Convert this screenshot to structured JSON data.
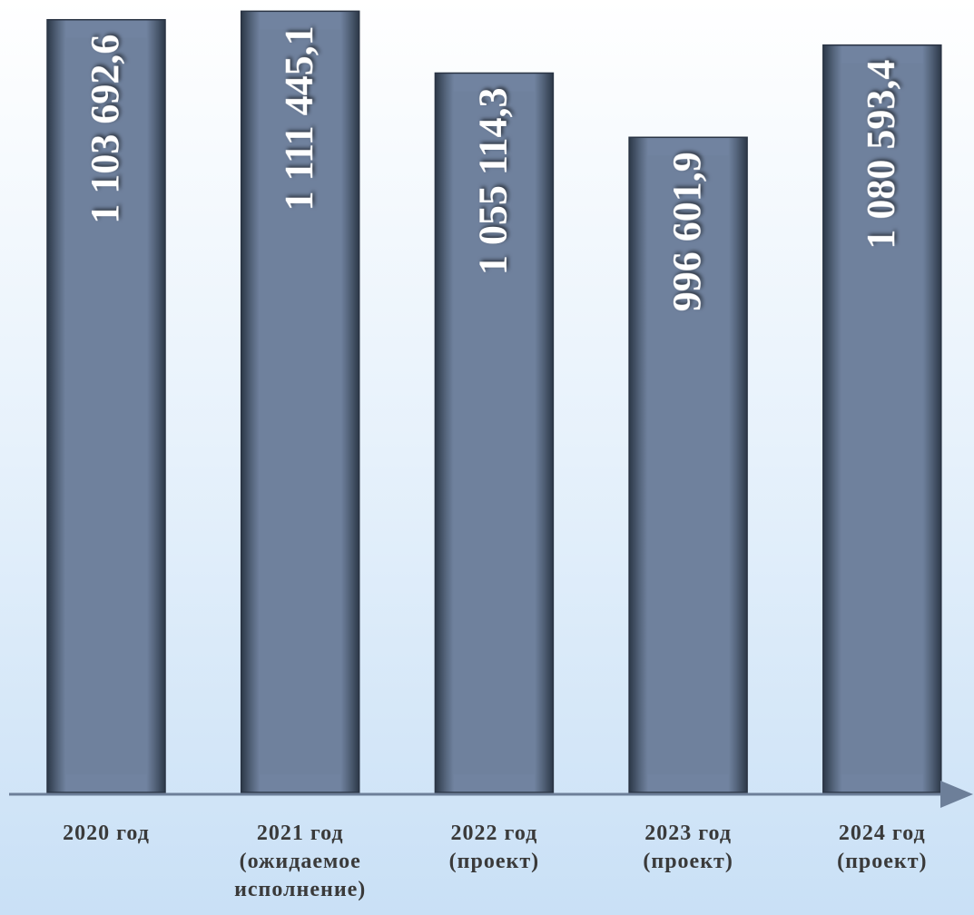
{
  "chart_data": {
    "type": "bar",
    "categories": [
      "2020 год",
      "2021 год\n(ожидаемое\nисполнение)",
      "2022 год\n(проект)",
      "2023 год\n(проект)",
      "2024 год\n(проект)"
    ],
    "values": [
      1103692.6,
      1111445.1,
      1055114.3,
      996601.9,
      1080593.4
    ],
    "value_labels": [
      "1 103 692,6",
      "1 111 445,1",
      "1 055 114,3",
      "996 601,9",
      "1 080 593,4"
    ],
    "color": "#6f819c",
    "ylim": [
      400000,
      1120000
    ]
  }
}
